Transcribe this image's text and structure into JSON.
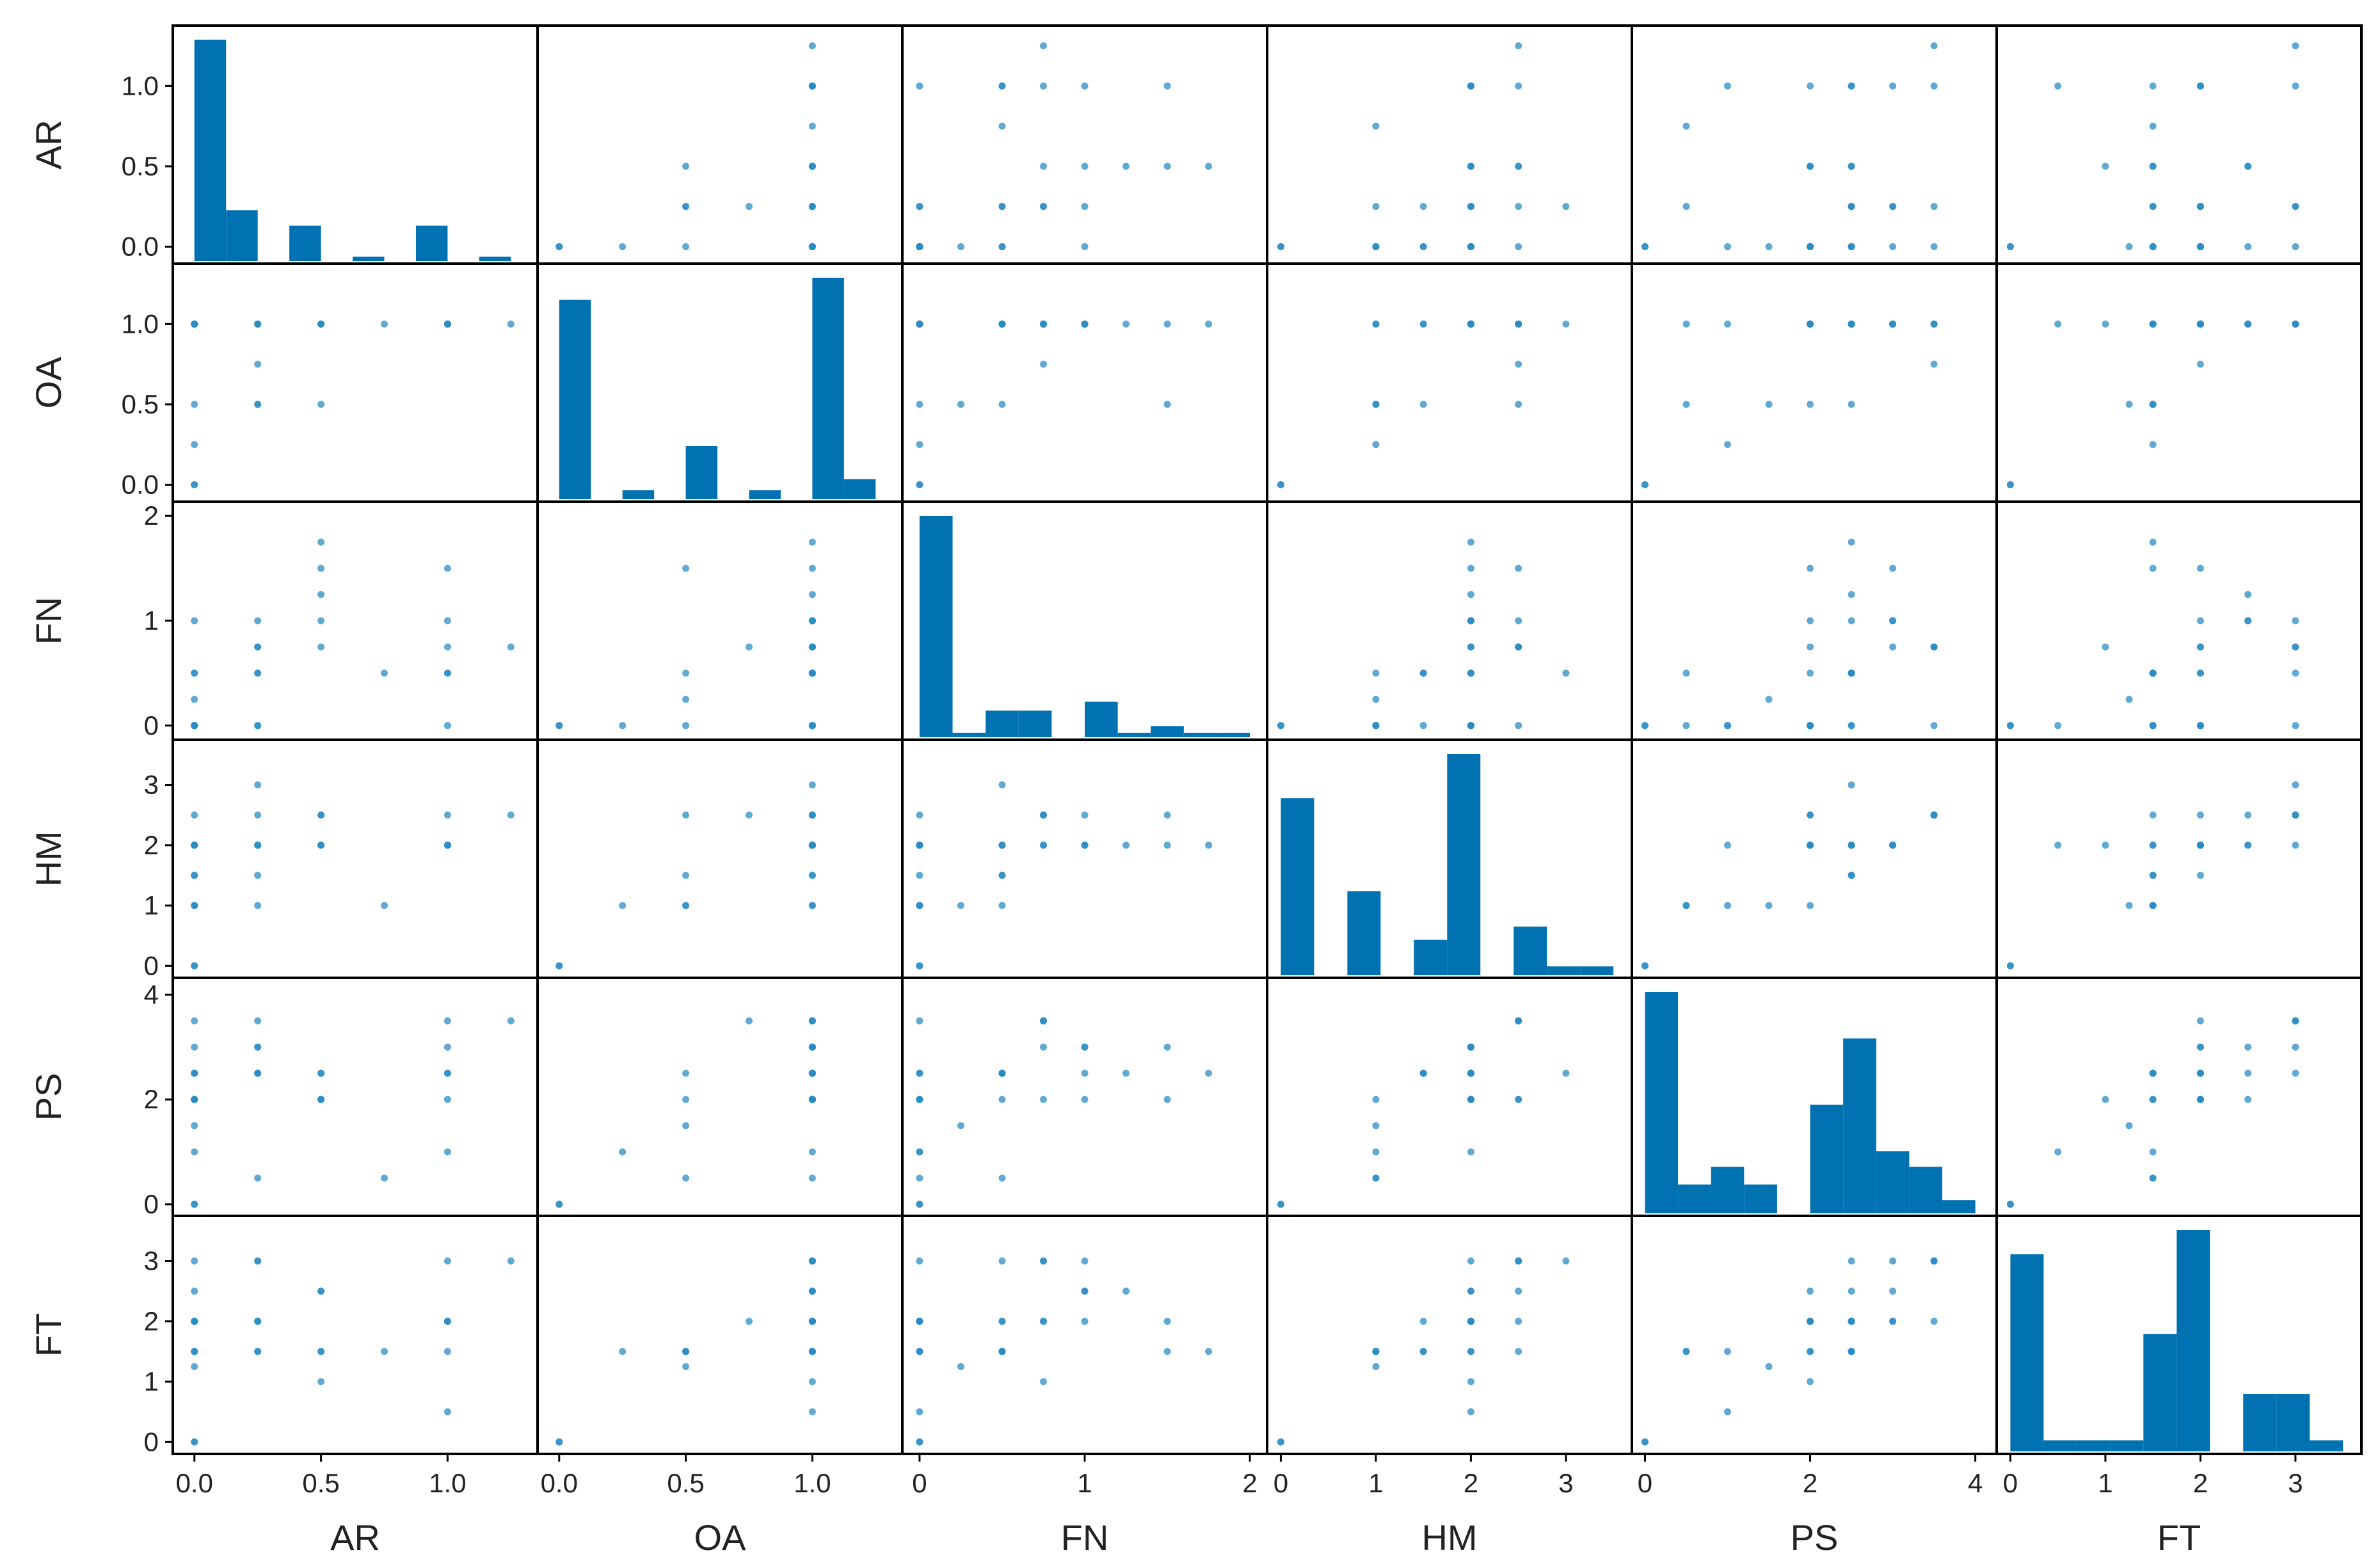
{
  "chart_data": {
    "type": "scatter-matrix",
    "title": "",
    "variables": [
      "AR",
      "OA",
      "FN",
      "HM",
      "PS",
      "FT"
    ],
    "ranges": {
      "AR": [
        -0.05,
        1.32
      ],
      "OA": [
        -0.05,
        1.32
      ],
      "FN": [
        -0.05,
        2.05
      ],
      "HM": [
        -0.05,
        3.6
      ],
      "PS": [
        -0.05,
        4.15
      ],
      "FT": [
        -0.05,
        3.6
      ]
    },
    "ticks": {
      "AR": [
        0.0,
        0.5,
        1.0
      ],
      "OA": [
        0.0,
        0.5,
        1.0
      ],
      "FN": [
        0,
        1,
        2
      ],
      "HM": [
        0,
        1,
        2,
        3
      ],
      "PS": [
        0,
        2,
        4
      ],
      "FT": [
        0,
        1,
        2,
        3
      ]
    },
    "tick_labels": {
      "AR": [
        "0.0",
        "0.5",
        "1.0"
      ],
      "OA": [
        "0.0",
        "0.5",
        "1.0"
      ],
      "FN": [
        "0",
        "1",
        "2"
      ],
      "HM": [
        "0",
        "1",
        "2",
        "3"
      ],
      "PS": [
        "0",
        "2",
        "4"
      ],
      "FT": [
        "0",
        "1",
        "2",
        "3"
      ]
    },
    "histograms": {
      "AR": {
        "edges": [
          0,
          0.125,
          0.25,
          0.375,
          0.5,
          0.625,
          0.75,
          0.875,
          1.0,
          1.125,
          1.25
        ],
        "relative_heights": [
          1.0,
          0.23,
          0.0,
          0.16,
          0.0,
          0.02,
          0.0,
          0.16,
          0.0,
          0.02
        ]
      },
      "OA": {
        "edges": [
          0,
          0.125,
          0.25,
          0.375,
          0.5,
          0.625,
          0.75,
          0.875,
          1.0,
          1.125,
          1.25
        ],
        "relative_heights": [
          0.9,
          0.0,
          0.04,
          0.0,
          0.24,
          0.0,
          0.04,
          0.0,
          1.0,
          0.09
        ]
      },
      "FN": {
        "edges": [
          0,
          0.2,
          0.4,
          0.6,
          0.8,
          1.0,
          1.2,
          1.4,
          1.6,
          1.8,
          2.0
        ],
        "relative_heights": [
          1.0,
          0.02,
          0.12,
          0.12,
          0.0,
          0.16,
          0.02,
          0.05,
          0.02,
          0.02
        ]
      },
      "HM": {
        "edges": [
          0,
          0.35,
          0.7,
          1.05,
          1.4,
          1.75,
          2.1,
          2.45,
          2.8,
          3.15,
          3.5
        ],
        "relative_heights": [
          0.8,
          0.0,
          0.38,
          0.0,
          0.16,
          1.0,
          0.0,
          0.22,
          0.04,
          0.04
        ]
      },
      "PS": {
        "edges": [
          0,
          0.4,
          0.8,
          1.2,
          1.6,
          2.0,
          2.4,
          2.8,
          3.2,
          3.6,
          4.0
        ],
        "relative_heights": [
          1.0,
          0.13,
          0.21,
          0.13,
          0.0,
          0.49,
          0.79,
          0.28,
          0.21,
          0.06
        ]
      },
      "FT": {
        "edges": [
          0,
          0.35,
          0.7,
          1.05,
          1.4,
          1.75,
          2.1,
          2.45,
          2.8,
          3.15,
          3.5
        ],
        "relative_heights": [
          0.89,
          0.05,
          0.05,
          0.05,
          0.53,
          1.0,
          0.0,
          0.26,
          0.26,
          0.05
        ]
      }
    },
    "points": [
      {
        "AR": 0,
        "OA": 0,
        "FN": 0,
        "HM": 0,
        "PS": 0,
        "FT": 0
      },
      {
        "AR": 0,
        "OA": 1,
        "FN": 0,
        "HM": 2,
        "PS": 2,
        "FT": 2
      },
      {
        "AR": 0,
        "OA": 1,
        "FN": 0.5,
        "HM": 1.5,
        "PS": 2.5,
        "FT": 1.5
      },
      {
        "AR": 0,
        "OA": 0.5,
        "FN": 0.25,
        "HM": 1,
        "PS": 1.5,
        "FT": 1.25
      },
      {
        "AR": 0,
        "OA": 0.25,
        "FN": 0,
        "HM": 1,
        "PS": 1,
        "FT": 1.5
      },
      {
        "AR": 0,
        "OA": 1,
        "FN": 0,
        "HM": 2.5,
        "PS": 3.5,
        "FT": 3
      },
      {
        "AR": 0,
        "OA": 1,
        "FN": 1,
        "HM": 2,
        "PS": 3,
        "FT": 2.5
      },
      {
        "AR": 0,
        "OA": 1,
        "FN": 0,
        "HM": 2,
        "PS": 2,
        "FT": 2
      },
      {
        "AR": 0,
        "OA": 0,
        "FN": 0,
        "HM": 0,
        "PS": 0,
        "FT": 0
      },
      {
        "AR": 0,
        "OA": 1,
        "FN": 0,
        "HM": 1,
        "PS": 2,
        "FT": 1.5
      },
      {
        "AR": 0,
        "OA": 1,
        "FN": 0,
        "HM": 1.5,
        "PS": 2.5,
        "FT": 2
      },
      {
        "AR": 0,
        "OA": 1,
        "FN": 0.5,
        "HM": 2,
        "PS": 2.5,
        "FT": 2
      },
      {
        "AR": 0,
        "OA": 1,
        "FN": 0,
        "HM": 2,
        "PS": 2,
        "FT": 2
      },
      {
        "AR": 0,
        "OA": 1,
        "FN": 0,
        "HM": 2,
        "PS": 2,
        "FT": 2
      },
      {
        "AR": 0.25,
        "OA": 1,
        "FN": 1,
        "HM": 2,
        "PS": 3,
        "FT": 3
      },
      {
        "AR": 0.25,
        "OA": 0.75,
        "FN": 0.75,
        "HM": 2.5,
        "PS": 3.5,
        "FT": 2
      },
      {
        "AR": 0.25,
        "OA": 0.5,
        "FN": 0.5,
        "HM": 1.5,
        "PS": 2.5,
        "FT": 1.5
      },
      {
        "AR": 0.25,
        "OA": 1,
        "FN": 0,
        "HM": 2,
        "PS": 2.5,
        "FT": 2
      },
      {
        "AR": 0.25,
        "OA": 1,
        "FN": 0.5,
        "HM": 3,
        "PS": 2.5,
        "FT": 3
      },
      {
        "AR": 0.25,
        "OA": 1,
        "FN": 0.75,
        "HM": 2,
        "PS": 3,
        "FT": 2
      },
      {
        "AR": 0.25,
        "OA": 0.5,
        "FN": 0,
        "HM": 1,
        "PS": 0.5,
        "FT": 1.5
      },
      {
        "AR": 0.5,
        "OA": 1,
        "FN": 1.25,
        "HM": 2,
        "PS": 2.5,
        "FT": 2.5
      },
      {
        "AR": 0.5,
        "OA": 0.5,
        "FN": 1.5,
        "HM": 2.5,
        "PS": 2,
        "FT": 1.5
      },
      {
        "AR": 0.5,
        "OA": 1,
        "FN": 1.75,
        "HM": 2,
        "PS": 2.5,
        "FT": 1.5
      },
      {
        "AR": 0.5,
        "OA": 1,
        "FN": 0.75,
        "HM": 2,
        "PS": 2,
        "FT": 1
      },
      {
        "AR": 0.5,
        "OA": 1,
        "FN": 1,
        "HM": 2.5,
        "PS": 2,
        "FT": 2.5
      },
      {
        "AR": 0.75,
        "OA": 1,
        "FN": 0.5,
        "HM": 1,
        "PS": 0.5,
        "FT": 1.5
      },
      {
        "AR": 1,
        "OA": 1,
        "FN": 1.5,
        "HM": 2,
        "PS": 3,
        "FT": 2
      },
      {
        "AR": 1,
        "OA": 1,
        "FN": 0.5,
        "HM": 2,
        "PS": 2.5,
        "FT": 1.5
      },
      {
        "AR": 1,
        "OA": 1,
        "FN": 0,
        "HM": 2,
        "PS": 1,
        "FT": 0.5
      },
      {
        "AR": 1,
        "OA": 1,
        "FN": 1,
        "HM": 2,
        "PS": 2.5,
        "FT": 2
      },
      {
        "AR": 1,
        "OA": 1,
        "FN": 0.5,
        "HM": 2,
        "PS": 2,
        "FT": 2
      },
      {
        "AR": 1,
        "OA": 1,
        "FN": 0.75,
        "HM": 2.5,
        "PS": 3.5,
        "FT": 3
      },
      {
        "AR": 1.25,
        "OA": 1,
        "FN": 0.75,
        "HM": 2.5,
        "PS": 3.5,
        "FT": 3
      }
    ]
  }
}
